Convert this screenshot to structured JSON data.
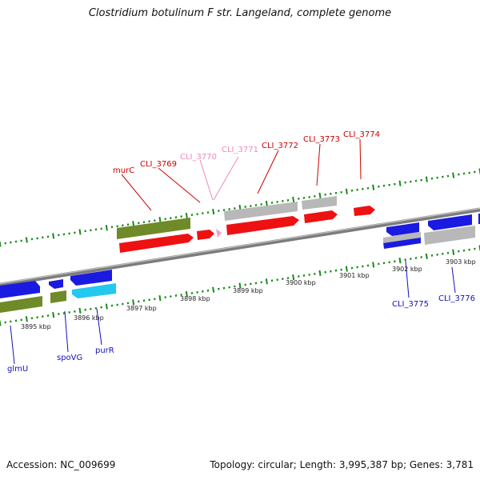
{
  "title": "Clostridium botulinum F str. Langeland, complete genome",
  "footer": {
    "accession": "Accession: NC_009699",
    "summary": "Topology: circular; Length: 3,995,387 bp; Genes: 3,781"
  },
  "colors": {
    "forward_gene": "#ee1111",
    "forward_gene_pseudo": "#b8b8b8",
    "forward_label": "#cc0000",
    "forward_label_light": "#ee88bb",
    "reverse_gene": "#1a1ae0",
    "reverse_gene_light": "#22c8f0",
    "reverse_label": "#1111bb",
    "cog_green": "#6f8a28",
    "tick": "#1a8a1a",
    "backbone": "#888888"
  },
  "scale_ticks": [
    "3895 kbp",
    "3896 kbp",
    "3897 kbp",
    "3898 kbp",
    "3899 kbp",
    "3900 kbp",
    "3901 kbp",
    "3902 kbp",
    "3903 kbp"
  ],
  "forward_labels": [
    "murC",
    "CLI_3769",
    "CLI_3770",
    "CLI_3771",
    "CLI_3772",
    "CLI_3773",
    "CLI_3774"
  ],
  "reverse_labels": [
    "glmU",
    "spoVG",
    "purR",
    "CLI_3775",
    "CLI_3776"
  ]
}
